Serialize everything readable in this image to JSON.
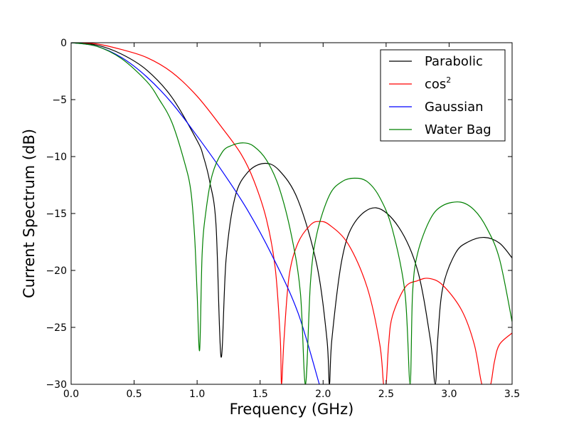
{
  "chart_data": {
    "type": "line",
    "title": "",
    "xlabel": "Frequency (GHz)",
    "ylabel": "Current Spectrum (dB)",
    "xlim": [
      0.0,
      3.5
    ],
    "ylim": [
      -30,
      0
    ],
    "grid": false,
    "legend_position": "top-right",
    "x_ticks": [
      "0.0",
      "0.5",
      "1.0",
      "1.5",
      "2.0",
      "2.5",
      "3.0",
      "3.5"
    ],
    "y_ticks": [
      "0",
      "−5",
      "−10",
      "−15",
      "−20",
      "−25",
      "−30"
    ],
    "series": [
      {
        "name": "Parabolic",
        "legend_main": "Parabolic",
        "legend_sup": "",
        "color": "#000000",
        "x": [
          0.0,
          0.2,
          0.4,
          0.6,
          0.8,
          1.0,
          1.05,
          1.1,
          1.15,
          1.19,
          1.23,
          1.3,
          1.4,
          1.53,
          1.65,
          1.8,
          1.95,
          2.03,
          2.05,
          2.07,
          2.15,
          2.25,
          2.42,
          2.6,
          2.75,
          2.85,
          2.89,
          2.91,
          2.95,
          3.05,
          3.15,
          3.28,
          3.4,
          3.5
        ],
        "y": [
          0.0,
          -0.2,
          -1.0,
          -2.4,
          -4.8,
          -8.6,
          -10.0,
          -12.2,
          -16.0,
          -27.6,
          -19.0,
          -13.6,
          -11.4,
          -10.6,
          -11.2,
          -13.8,
          -19.5,
          -26.0,
          -30.0,
          -26.0,
          -19.0,
          -15.8,
          -14.5,
          -16.2,
          -20.0,
          -26.0,
          -30.0,
          -26.0,
          -21.5,
          -18.5,
          -17.5,
          -17.1,
          -17.6,
          -18.9
        ]
      },
      {
        "name": "cos2",
        "legend_main": "cos",
        "legend_sup": "2",
        "color": "#ff0000",
        "x": [
          0.0,
          0.2,
          0.4,
          0.6,
          0.8,
          1.0,
          1.2,
          1.35,
          1.45,
          1.55,
          1.62,
          1.66,
          1.67,
          1.69,
          1.73,
          1.8,
          1.9,
          1.97,
          2.05,
          2.2,
          2.35,
          2.45,
          2.48,
          2.5,
          2.52,
          2.55,
          2.65,
          2.75,
          2.84,
          2.95,
          3.1,
          3.2,
          3.26,
          3.3,
          3.33,
          3.36,
          3.4,
          3.5
        ],
        "y": [
          0.0,
          -0.1,
          -0.6,
          -1.3,
          -2.6,
          -4.7,
          -7.5,
          -9.8,
          -12.1,
          -15.5,
          -19.8,
          -26.0,
          -30.0,
          -26.0,
          -20.5,
          -17.6,
          -16.0,
          -15.7,
          -16.0,
          -17.7,
          -21.5,
          -26.5,
          -30.0,
          -30.0,
          -26.5,
          -24.0,
          -21.5,
          -20.9,
          -20.7,
          -21.3,
          -23.5,
          -26.5,
          -30.0,
          -30.0,
          -30.0,
          -28.0,
          -26.5,
          -25.5
        ]
      },
      {
        "name": "Gaussian",
        "legend_main": "Gaussian",
        "legend_sup": "",
        "color": "#0000ff",
        "x": [
          0.0,
          0.2,
          0.4,
          0.6,
          0.8,
          1.0,
          1.2,
          1.4,
          1.6,
          1.8,
          1.97
        ],
        "y": [
          0.0,
          -0.3,
          -1.3,
          -3.0,
          -5.3,
          -8.2,
          -11.3,
          -14.7,
          -18.8,
          -23.7,
          -30.0
        ]
      },
      {
        "name": "Water Bag",
        "legend_main": "Water Bag",
        "legend_sup": "",
        "color": "#008000",
        "x": [
          0.0,
          0.2,
          0.4,
          0.6,
          0.7,
          0.8,
          0.9,
          0.95,
          0.98,
          1.0,
          1.02,
          1.04,
          1.07,
          1.12,
          1.2,
          1.28,
          1.37,
          1.45,
          1.55,
          1.65,
          1.75,
          1.82,
          1.86,
          1.9,
          1.95,
          2.05,
          2.15,
          2.25,
          2.35,
          2.45,
          2.55,
          2.65,
          2.69,
          2.71,
          2.75,
          2.85,
          2.95,
          3.09,
          3.2,
          3.3,
          3.4,
          3.5
        ],
        "y": [
          0.0,
          -0.3,
          -1.4,
          -3.4,
          -5.0,
          -7.0,
          -10.5,
          -13.0,
          -17.0,
          -22.0,
          -27.0,
          -18.5,
          -14.8,
          -11.6,
          -9.6,
          -9.0,
          -8.8,
          -9.1,
          -10.3,
          -12.7,
          -17.0,
          -22.0,
          -30.0,
          -21.0,
          -16.8,
          -13.4,
          -12.2,
          -11.9,
          -12.2,
          -13.6,
          -16.4,
          -22.0,
          -30.0,
          -22.0,
          -18.5,
          -15.5,
          -14.3,
          -14.0,
          -14.7,
          -16.3,
          -19.0,
          -24.5
        ]
      }
    ]
  }
}
